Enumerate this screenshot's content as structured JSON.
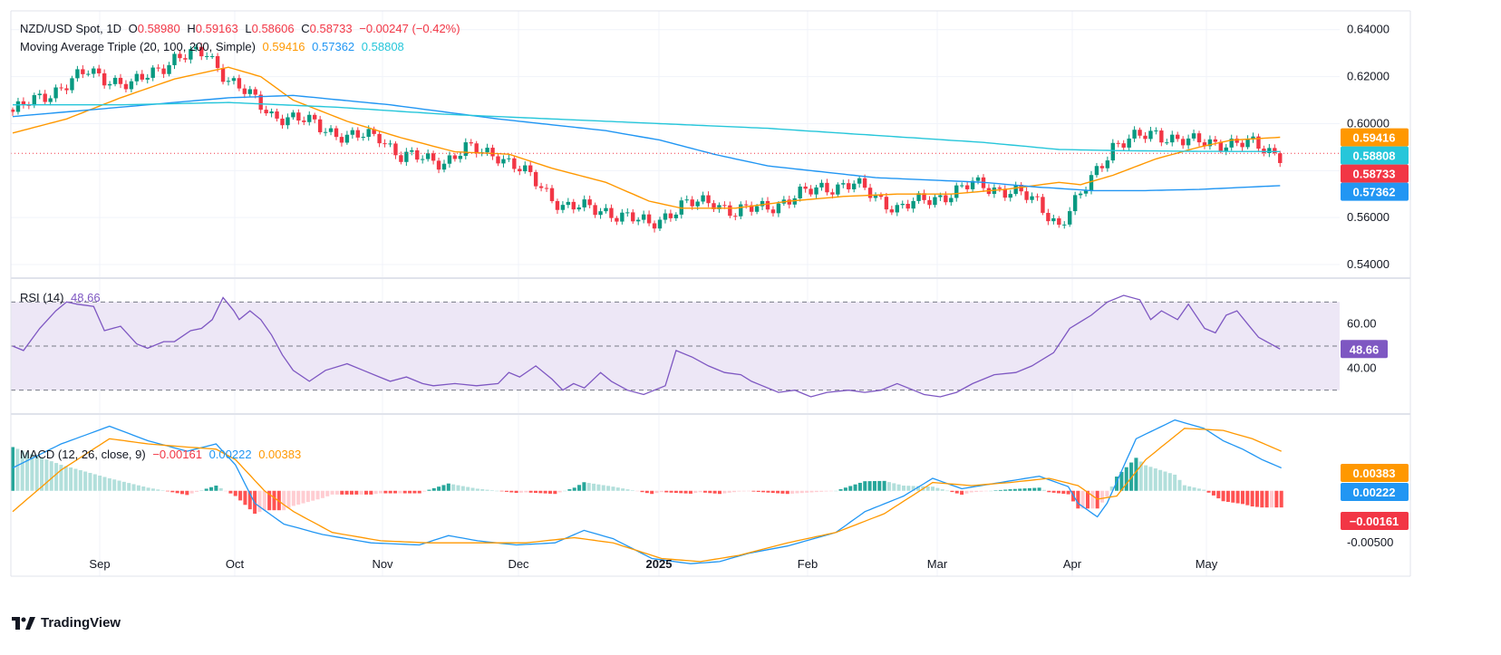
{
  "header": {
    "symbol": "NZD/USD Spot, 1D",
    "open_label": "O",
    "open": "0.58980",
    "high_label": "H",
    "high": "0.59163",
    "low_label": "L",
    "low": "0.58606",
    "close_label": "C",
    "close": "0.58733",
    "change": "−0.00247 (−0.42%)"
  },
  "ma_legend": {
    "title": "Moving Average Triple (20, 100, 200, Simple)",
    "ma20": "0.59416",
    "ma100": "0.57362",
    "ma200": "0.58808"
  },
  "rsi_legend": {
    "title": "RSI (14)",
    "value": "48.66"
  },
  "macd_legend": {
    "title": "MACD (12, 26, close, 9)",
    "hist": "−0.00161",
    "macd": "0.00222",
    "signal": "0.00383"
  },
  "brand": {
    "name": "TradingView"
  },
  "colors": {
    "up": "#089981",
    "down": "#f23645",
    "ma20": "#ff9800",
    "ma100": "#2196f3",
    "ma200": "#26c6da",
    "rsi": "#7e57c2",
    "rsi_band": "#ede7f6",
    "hist_up_strong": "#26a69a",
    "hist_up_weak": "#b2dfdb",
    "hist_down_strong": "#ff5252",
    "hist_down_weak": "#ffcdd2",
    "grid": "#f0f3fa"
  },
  "chart_data": [
    {
      "type": "candlestick",
      "x_labels": [
        "Sep",
        "Oct",
        "Nov",
        "Dec",
        "2025",
        "Feb",
        "Mar",
        "Apr",
        "May"
      ],
      "ylim": [
        0.535,
        0.648
      ],
      "y_ticks": [
        "0.64000",
        "0.62000",
        "0.60000",
        "0.58000",
        "0.56000",
        "0.54000"
      ],
      "price_tags": [
        {
          "label": "0.59416",
          "value": 0.59416,
          "color": "#ff9800"
        },
        {
          "label": "0.58808",
          "value": 0.58808,
          "color": "#26c6da"
        },
        {
          "label": "0.58733",
          "value": 0.58733,
          "color": "#f23645"
        },
        {
          "label": "0.57362",
          "value": 0.57362,
          "color": "#2196f3"
        }
      ],
      "anchors": [
        [
          0,
          0.605
        ],
        [
          6,
          0.612
        ],
        [
          14,
          0.622
        ],
        [
          22,
          0.616
        ],
        [
          30,
          0.628
        ],
        [
          36,
          0.63
        ],
        [
          40,
          0.619
        ],
        [
          48,
          0.604
        ],
        [
          56,
          0.6
        ],
        [
          62,
          0.594
        ],
        [
          68,
          0.595
        ],
        [
          72,
          0.586
        ],
        [
          80,
          0.584
        ],
        [
          84,
          0.589
        ],
        [
          90,
          0.587
        ],
        [
          96,
          0.577
        ],
        [
          102,
          0.565
        ],
        [
          110,
          0.563
        ],
        [
          118,
          0.557
        ],
        [
          124,
          0.565
        ],
        [
          130,
          0.567
        ],
        [
          134,
          0.562
        ],
        [
          142,
          0.566
        ],
        [
          150,
          0.573
        ],
        [
          156,
          0.574
        ],
        [
          164,
          0.564
        ],
        [
          172,
          0.569
        ],
        [
          178,
          0.574
        ],
        [
          186,
          0.571
        ],
        [
          190,
          0.566
        ],
        [
          194,
          0.557
        ],
        [
          198,
          0.569
        ],
        [
          204,
          0.591
        ],
        [
          212,
          0.596
        ],
        [
          218,
          0.592
        ],
        [
          224,
          0.592
        ],
        [
          230,
          0.591
        ],
        [
          235,
          0.587
        ]
      ],
      "series": [
        {
          "name": "MA 20",
          "points": [
            [
              0,
              0.596
            ],
            [
              10,
              0.602
            ],
            [
              20,
              0.611
            ],
            [
              30,
              0.619
            ],
            [
              40,
              0.624
            ],
            [
              46,
              0.62
            ],
            [
              52,
              0.61
            ],
            [
              62,
              0.601
            ],
            [
              72,
              0.594
            ],
            [
              82,
              0.588
            ],
            [
              92,
              0.587
            ],
            [
              100,
              0.581
            ],
            [
              110,
              0.575
            ],
            [
              118,
              0.567
            ],
            [
              124,
              0.564
            ],
            [
              134,
              0.564
            ],
            [
              144,
              0.567
            ],
            [
              154,
              0.569
            ],
            [
              164,
              0.57
            ],
            [
              174,
              0.57
            ],
            [
              184,
              0.572
            ],
            [
              194,
              0.575
            ],
            [
              198,
              0.574
            ],
            [
              204,
              0.578
            ],
            [
              212,
              0.585
            ],
            [
              220,
              0.59
            ],
            [
              226,
              0.593
            ],
            [
              230,
              0.5935
            ],
            [
              235,
              0.5942
            ]
          ]
        },
        {
          "name": "MA 100",
          "points": [
            [
              0,
              0.603
            ],
            [
              20,
              0.607
            ],
            [
              40,
              0.611
            ],
            [
              52,
              0.612
            ],
            [
              70,
              0.608
            ],
            [
              90,
              0.602
            ],
            [
              110,
              0.597
            ],
            [
              120,
              0.593
            ],
            [
              130,
              0.587
            ],
            [
              140,
              0.582
            ],
            [
              160,
              0.577
            ],
            [
              180,
              0.575
            ],
            [
              190,
              0.573
            ],
            [
              200,
              0.5715
            ],
            [
              210,
              0.5715
            ],
            [
              220,
              0.572
            ],
            [
              235,
              0.5736
            ]
          ]
        },
        {
          "name": "MA 200",
          "points": [
            [
              0,
              0.608
            ],
            [
              20,
              0.608
            ],
            [
              40,
              0.609
            ],
            [
              60,
              0.607
            ],
            [
              80,
              0.604
            ],
            [
              100,
              0.602
            ],
            [
              120,
              0.6
            ],
            [
              140,
              0.598
            ],
            [
              160,
              0.595
            ],
            [
              180,
              0.592
            ],
            [
              194,
              0.589
            ],
            [
              205,
              0.5885
            ],
            [
              220,
              0.5882
            ],
            [
              235,
              0.5881
            ]
          ]
        }
      ]
    },
    {
      "type": "line",
      "name": "RSI (14)",
      "ylim": [
        20,
        80
      ],
      "y_ticks": [
        "60.00",
        "40.00"
      ],
      "bands": [
        70,
        50,
        30
      ],
      "last": 48.66,
      "points": [
        [
          0,
          50
        ],
        [
          2,
          48
        ],
        [
          5,
          58
        ],
        [
          8,
          66
        ],
        [
          10,
          70
        ],
        [
          12,
          69
        ],
        [
          15,
          68
        ],
        [
          17,
          57
        ],
        [
          20,
          59
        ],
        [
          23,
          51
        ],
        [
          25,
          49
        ],
        [
          28,
          52
        ],
        [
          30,
          52
        ],
        [
          33,
          57
        ],
        [
          35,
          58
        ],
        [
          37,
          62
        ],
        [
          39,
          72
        ],
        [
          41,
          66
        ],
        [
          42,
          62
        ],
        [
          44,
          66
        ],
        [
          46,
          62
        ],
        [
          48,
          55
        ],
        [
          50,
          46
        ],
        [
          52,
          39
        ],
        [
          55,
          34
        ],
        [
          58,
          39
        ],
        [
          62,
          42
        ],
        [
          65,
          39
        ],
        [
          68,
          36
        ],
        [
          70,
          34
        ],
        [
          73,
          36
        ],
        [
          76,
          33
        ],
        [
          78,
          32
        ],
        [
          82,
          33
        ],
        [
          86,
          32
        ],
        [
          90,
          33
        ],
        [
          92,
          38
        ],
        [
          94,
          36
        ],
        [
          97,
          41
        ],
        [
          100,
          35
        ],
        [
          102,
          30
        ],
        [
          104,
          33
        ],
        [
          106,
          31
        ],
        [
          109,
          38
        ],
        [
          111,
          34
        ],
        [
          114,
          30
        ],
        [
          117,
          28
        ],
        [
          121,
          32
        ],
        [
          123,
          48
        ],
        [
          126,
          45
        ],
        [
          129,
          41
        ],
        [
          132,
          38
        ],
        [
          135,
          37
        ],
        [
          137,
          34
        ],
        [
          139,
          32
        ],
        [
          142,
          29
        ],
        [
          145,
          30
        ],
        [
          148,
          27
        ],
        [
          151,
          29
        ],
        [
          155,
          30
        ],
        [
          158,
          29
        ],
        [
          161,
          30
        ],
        [
          164,
          33
        ],
        [
          166,
          31
        ],
        [
          169,
          28
        ],
        [
          172,
          27
        ],
        [
          175,
          29
        ],
        [
          178,
          33
        ],
        [
          182,
          37
        ],
        [
          186,
          38
        ],
        [
          189,
          41
        ],
        [
          193,
          47
        ],
        [
          196,
          58
        ],
        [
          198,
          61
        ],
        [
          200,
          64
        ],
        [
          203,
          70
        ],
        [
          206,
          73
        ],
        [
          209,
          71
        ],
        [
          211,
          62
        ],
        [
          213,
          66
        ],
        [
          216,
          62
        ],
        [
          218,
          69
        ],
        [
          221,
          58
        ],
        [
          223,
          56
        ],
        [
          225,
          64
        ],
        [
          227,
          66
        ],
        [
          229,
          60
        ],
        [
          231,
          54
        ],
        [
          234,
          50
        ],
        [
          235,
          48.66
        ]
      ]
    },
    {
      "type": "line+histogram",
      "name": "MACD (12, 26, close, 9)",
      "ylim": [
        -0.0082,
        0.0072
      ],
      "y_ticks": [
        "0.00000",
        "-0.00500"
      ],
      "y_tick_values": [
        0,
        -0.005
      ],
      "series": [
        {
          "name": "MACD",
          "points": [
            [
              0,
              0.0022
            ],
            [
              10,
              0.0045
            ],
            [
              20,
              0.0062
            ],
            [
              28,
              0.0048
            ],
            [
              36,
              0.0038
            ],
            [
              42,
              0.0045
            ],
            [
              46,
              0.0025
            ],
            [
              50,
              -0.0012
            ],
            [
              56,
              -0.0032
            ],
            [
              64,
              -0.0042
            ],
            [
              74,
              -0.005
            ],
            [
              84,
              -0.0052
            ],
            [
              90,
              -0.0043
            ],
            [
              96,
              -0.0048
            ],
            [
              104,
              -0.0052
            ],
            [
              112,
              -0.005
            ],
            [
              118,
              -0.0038
            ],
            [
              124,
              -0.0046
            ],
            [
              132,
              -0.0065
            ],
            [
              140,
              -0.007
            ],
            [
              146,
              -0.0068
            ],
            [
              152,
              -0.006
            ],
            [
              160,
              -0.0053
            ],
            [
              170,
              -0.004
            ],
            [
              176,
              -0.002
            ],
            [
              184,
              -0.0005
            ],
            [
              190,
              0.0012
            ],
            [
              196,
              0.0002
            ],
            [
              204,
              0.0008
            ],
            [
              212,
              0.0014
            ],
            [
              218,
              0.0004
            ],
            [
              220,
              -0.0012
            ],
            [
              224,
              -0.0025
            ],
            [
              226,
              -0.0012
            ],
            [
              232,
              0.005
            ],
            [
              240,
              0.0068
            ],
            [
              246,
              0.006
            ],
            [
              250,
              0.0048
            ],
            [
              254,
              0.004
            ],
            [
              258,
              0.003
            ],
            [
              262,
              0.0022
            ]
          ]
        },
        {
          "name": "Signal",
          "points": [
            [
              0,
              -0.002
            ],
            [
              10,
              0.002
            ],
            [
              20,
              0.005
            ],
            [
              28,
              0.0045
            ],
            [
              36,
              0.0042
            ],
            [
              42,
              0.004
            ],
            [
              46,
              0.003
            ],
            [
              52,
              0.0
            ],
            [
              58,
              -0.002
            ],
            [
              66,
              -0.004
            ],
            [
              76,
              -0.0048
            ],
            [
              86,
              -0.005
            ],
            [
              96,
              -0.005
            ],
            [
              106,
              -0.005
            ],
            [
              116,
              -0.0045
            ],
            [
              124,
              -0.005
            ],
            [
              134,
              -0.0065
            ],
            [
              142,
              -0.0068
            ],
            [
              150,
              -0.0062
            ],
            [
              160,
              -0.005
            ],
            [
              170,
              -0.004
            ],
            [
              180,
              -0.0022
            ],
            [
              190,
              0.0008
            ],
            [
              198,
              0.0005
            ],
            [
              206,
              0.0008
            ],
            [
              214,
              0.0012
            ],
            [
              220,
              0.0005
            ],
            [
              224,
              -0.0008
            ],
            [
              228,
              -0.0005
            ],
            [
              234,
              0.003
            ],
            [
              242,
              0.006
            ],
            [
              250,
              0.0058
            ],
            [
              256,
              0.005
            ],
            [
              262,
              0.0038
            ]
          ]
        }
      ]
    }
  ]
}
